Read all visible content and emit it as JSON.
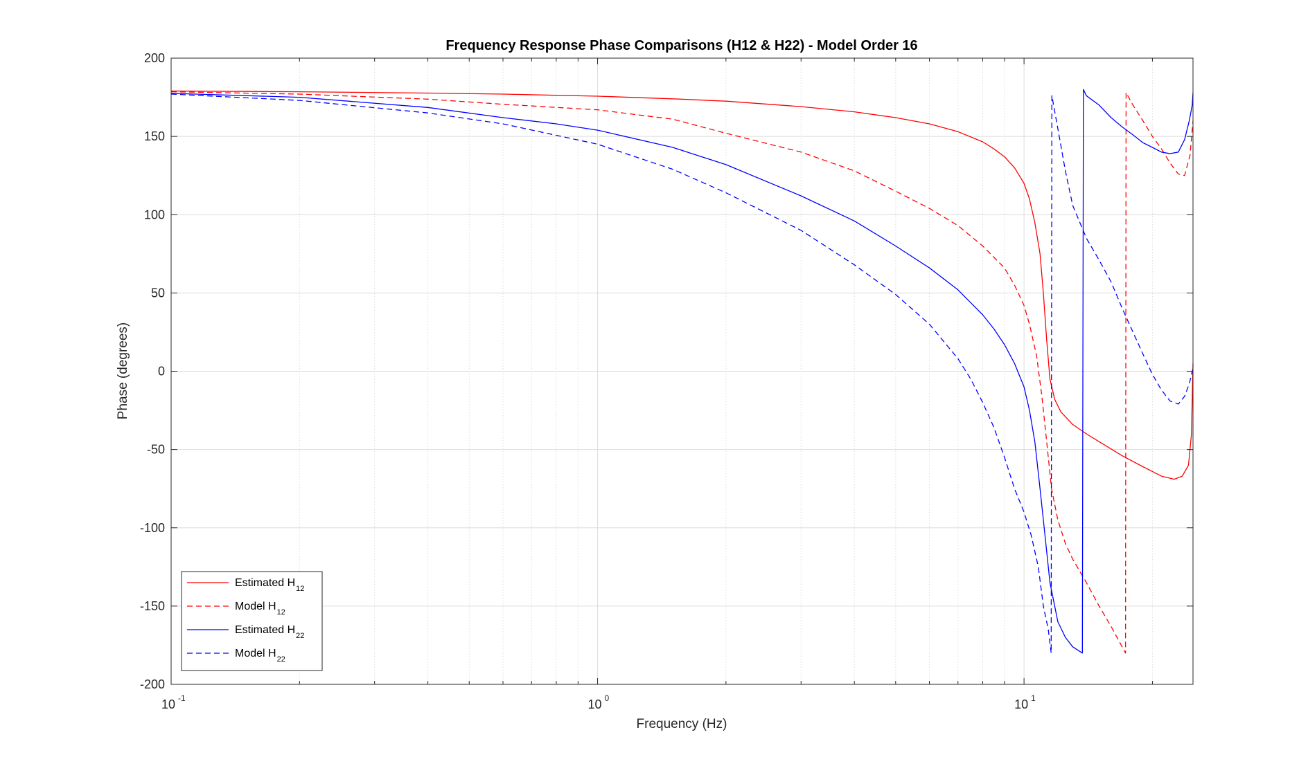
{
  "chart_data": {
    "type": "line",
    "title": "Frequency Response Phase Comparisons (H12 & H22) - Model Order 16",
    "xlabel": "Frequency (Hz)",
    "ylabel": "Phase (degrees)",
    "xscale": "log",
    "xlim": [
      0.1,
      24.9
    ],
    "ylim": [
      -200,
      200
    ],
    "x_ticks": [
      {
        "value": 0.1,
        "base": "10",
        "exp": "-1"
      },
      {
        "value": 1,
        "base": "10",
        "exp": "0"
      },
      {
        "value": 10,
        "base": "10",
        "exp": "1"
      }
    ],
    "y_ticks": [
      "-200",
      "-150",
      "-100",
      "-50",
      "0",
      "50",
      "100",
      "150",
      "200"
    ],
    "grid": true,
    "legend": {
      "location": "bottom-left",
      "entries": [
        {
          "text": "Estimated H",
          "sub": "12"
        },
        {
          "text": "Model H",
          "sub": "12"
        },
        {
          "text": "Estimated H",
          "sub": "22"
        },
        {
          "text": "Model H",
          "sub": "22"
        }
      ]
    },
    "series": [
      {
        "color": "#ff0000",
        "dash": "solid",
        "x": [
          0.1,
          0.2,
          0.4,
          0.6,
          1,
          1.5,
          2,
          3,
          4,
          5,
          6,
          7,
          8,
          8.5,
          9,
          9.5,
          10,
          10.3,
          10.6,
          10.9,
          11.1,
          11.3,
          11.5,
          11.8,
          12.2,
          13,
          14,
          15,
          17,
          19,
          21,
          22.5,
          23.5,
          24.3,
          24.7,
          24.9
        ],
        "y": [
          179,
          178.5,
          177.7,
          177,
          175.7,
          174,
          172.5,
          169,
          165.7,
          162,
          158,
          153,
          146.5,
          142,
          137,
          130,
          120,
          110,
          95,
          75,
          50,
          20,
          -5,
          -18,
          -26,
          -34,
          -40,
          -45,
          -54,
          -61,
          -67,
          -69,
          -67,
          -60,
          -40,
          5
        ]
      },
      {
        "color": "#ff0000",
        "dash": "dashed",
        "x": [
          0.1,
          0.2,
          0.4,
          0.6,
          1,
          1.5,
          2,
          3,
          4,
          5,
          6,
          7,
          8,
          9,
          9.5,
          10,
          10.3,
          10.7,
          11,
          11.3,
          11.6,
          12,
          12.5,
          13,
          14,
          15,
          16,
          17.3,
          17.35,
          18,
          19,
          20,
          21,
          22,
          23,
          23.8,
          24.5,
          24.9
        ],
        "y": [
          178.5,
          177,
          173.8,
          170.5,
          167,
          161,
          152,
          140,
          128,
          115,
          104,
          93,
          80,
          66,
          55,
          42,
          30,
          10,
          -15,
          -45,
          -75,
          -95,
          -110,
          -120,
          -135,
          -150,
          -163,
          -180,
          178,
          170,
          160,
          150,
          142,
          133,
          126,
          125,
          138,
          160
        ]
      },
      {
        "color": "#0000ff",
        "dash": "solid",
        "x": [
          0.1,
          0.2,
          0.4,
          0.6,
          0.8,
          1,
          1.5,
          2,
          3,
          4,
          5,
          6,
          7,
          8,
          8.5,
          9,
          9.5,
          10,
          10.3,
          10.6,
          10.9,
          11.2,
          11.5,
          12,
          12.5,
          13,
          13.7,
          13.78,
          14,
          15,
          16,
          17,
          18,
          19,
          20,
          21,
          22,
          23,
          23.8,
          24.4,
          24.8,
          24.9
        ],
        "y": [
          177.5,
          175,
          168.5,
          162,
          158,
          154,
          143,
          132,
          112,
          96,
          80,
          66,
          52,
          36,
          27,
          17,
          5,
          -10,
          -25,
          -45,
          -75,
          -105,
          -135,
          -160,
          -170,
          -176,
          -180,
          180,
          176,
          170,
          162,
          156,
          151,
          146,
          143,
          140,
          139,
          140,
          148,
          160,
          170,
          178
        ]
      },
      {
        "color": "#0000ff",
        "dash": "dashed",
        "x": [
          0.1,
          0.2,
          0.4,
          0.6,
          1,
          1.5,
          2,
          3,
          4,
          5,
          6,
          7,
          7.5,
          8,
          8.5,
          9,
          9.5,
          10,
          10.4,
          10.8,
          11.1,
          11.4,
          11.58,
          11.62,
          12,
          12.5,
          13,
          14,
          15,
          16,
          17,
          18,
          19,
          20,
          21,
          22,
          23,
          23.8,
          24.4,
          24.9
        ],
        "y": [
          177,
          173,
          165,
          158,
          145,
          129,
          114,
          90,
          68,
          49,
          30,
          8,
          -5,
          -20,
          -36,
          -55,
          -75,
          -90,
          -105,
          -125,
          -150,
          -165,
          -180,
          176,
          155,
          128,
          106,
          85,
          71,
          57,
          40,
          25,
          11,
          -2,
          -12,
          -19,
          -21,
          -16,
          -8,
          2
        ]
      }
    ]
  }
}
